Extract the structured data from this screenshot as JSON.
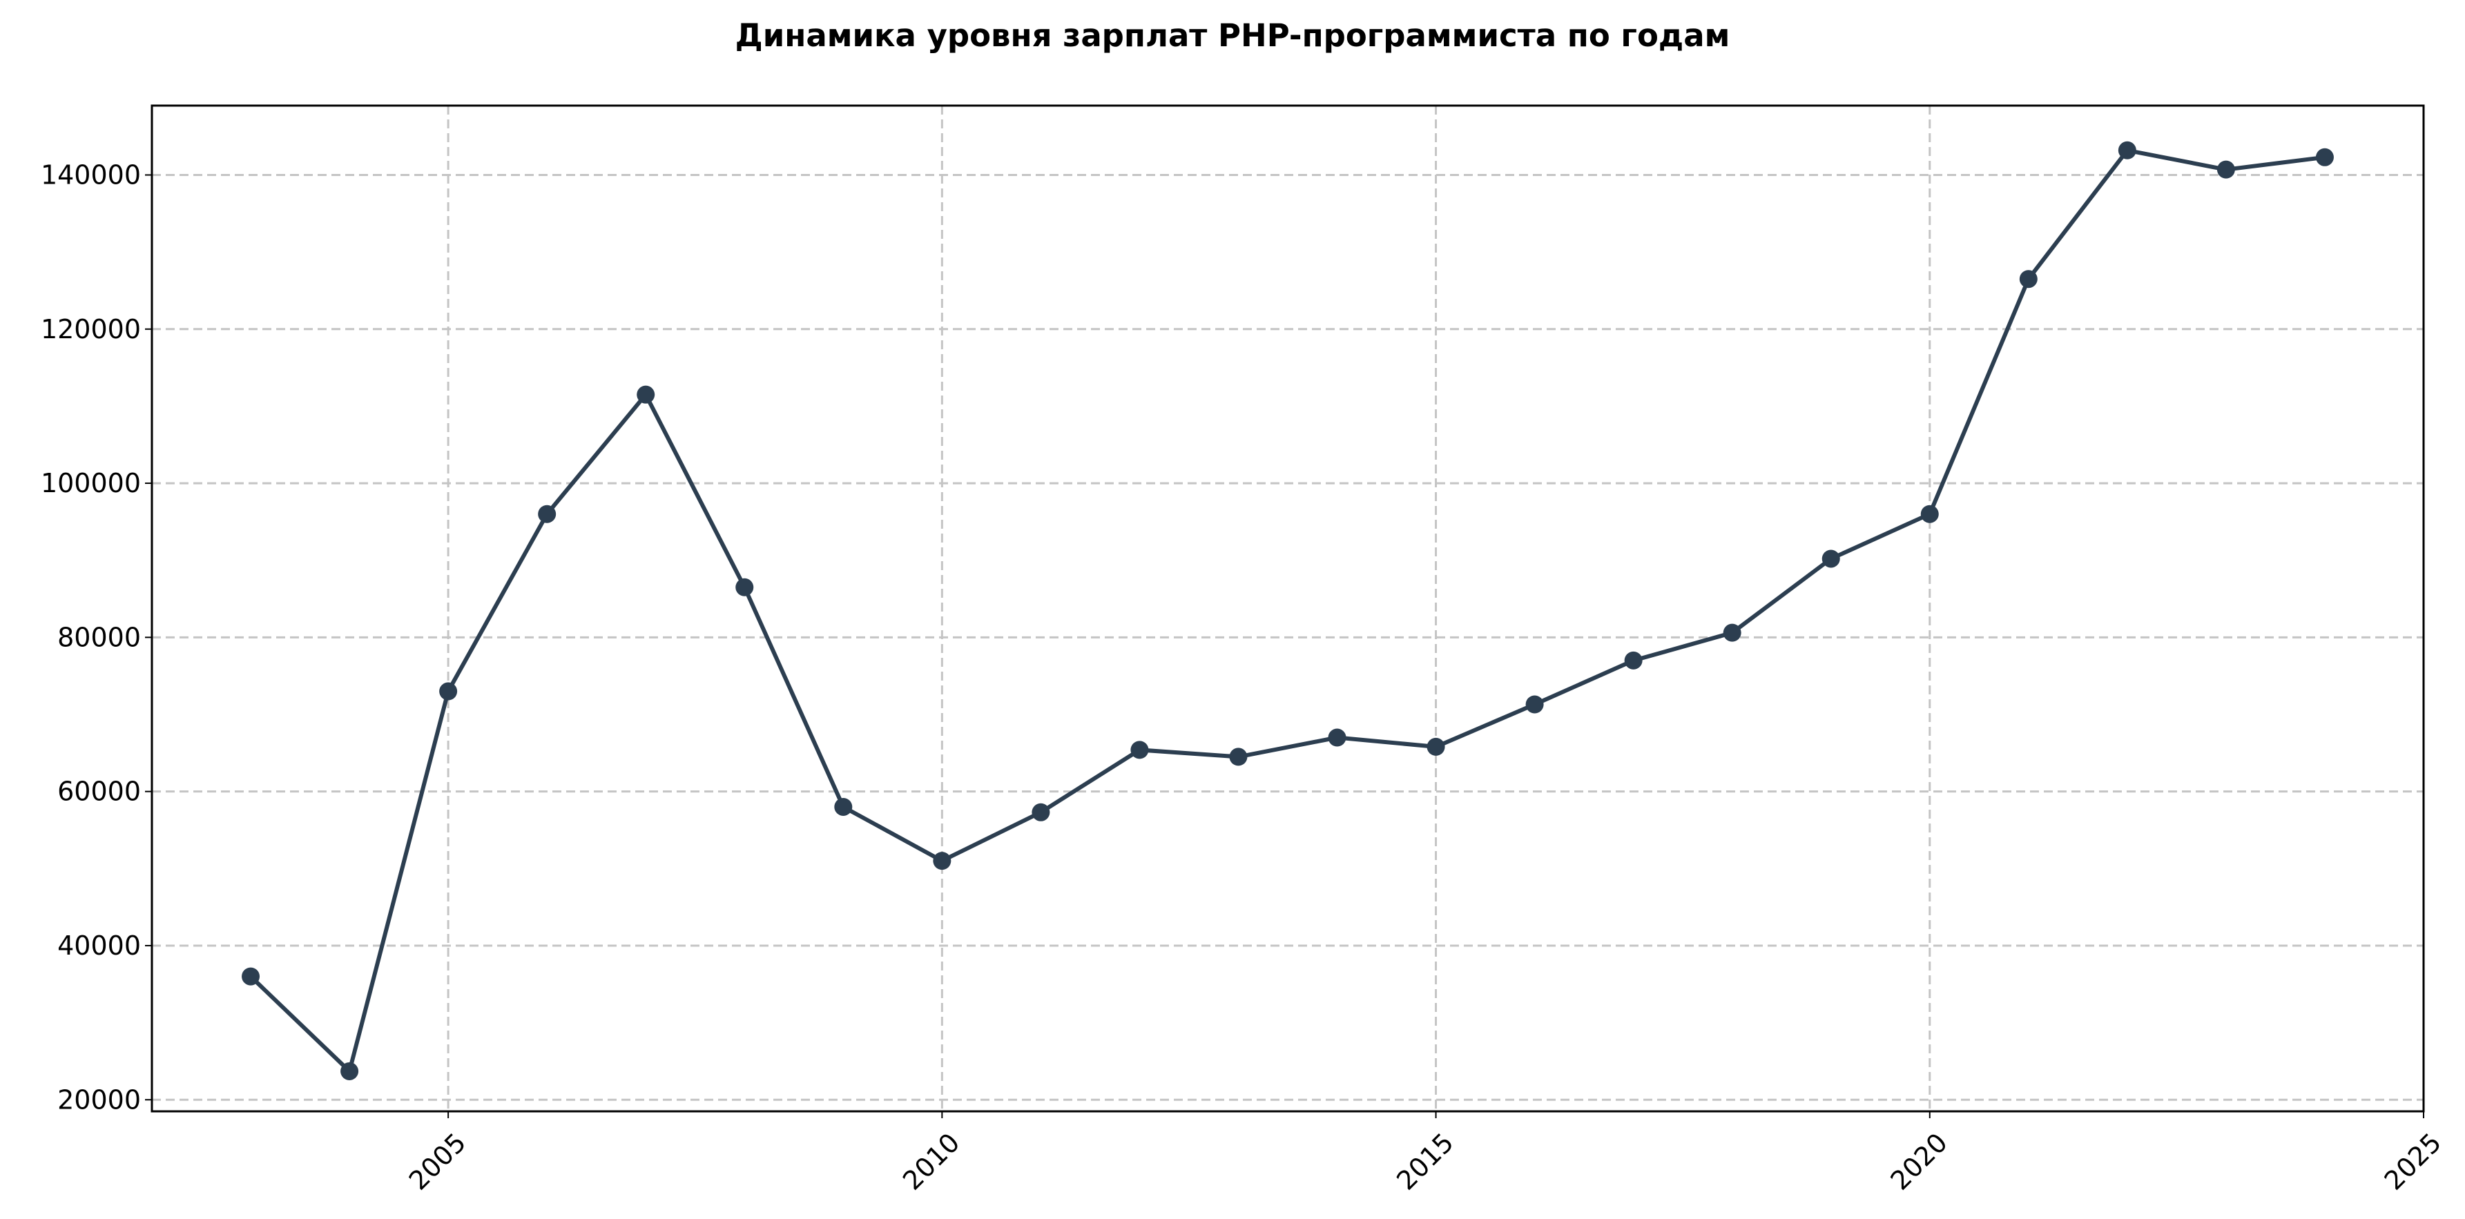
{
  "chart_data": {
    "type": "line",
    "title": "Динамика уровня зарплат PHP-программиста по годам",
    "xlabel": "",
    "ylabel": "",
    "xlim": [
      2002,
      2025
    ],
    "ylim": [
      18500,
      149000
    ],
    "x_ticks": [
      2005,
      2010,
      2015,
      2020,
      2025
    ],
    "y_ticks": [
      20000,
      40000,
      60000,
      80000,
      100000,
      120000,
      140000
    ],
    "x_tick_labels": [
      "2005",
      "2010",
      "2015",
      "2020",
      "2025"
    ],
    "y_tick_labels": [
      "20000",
      "40000",
      "60000",
      "80000",
      "100000",
      "120000",
      "140000"
    ],
    "x_tick_rotation": 45,
    "grid": true,
    "legend": false,
    "series": [
      {
        "color": "#2c3e50",
        "marker": "circle",
        "x": [
          2003,
          2004,
          2005,
          2006,
          2007,
          2008,
          2009,
          2010,
          2011,
          2012,
          2013,
          2014,
          2015,
          2016,
          2017,
          2018,
          2019,
          2020,
          2021,
          2022,
          2023,
          2024
        ],
        "y": [
          36000,
          23700,
          73000,
          96000,
          111500,
          86500,
          58000,
          51000,
          57300,
          65400,
          64500,
          67000,
          65800,
          71300,
          77000,
          80600,
          90200,
          96000,
          126500,
          143200,
          140700,
          142300
        ]
      }
    ]
  }
}
